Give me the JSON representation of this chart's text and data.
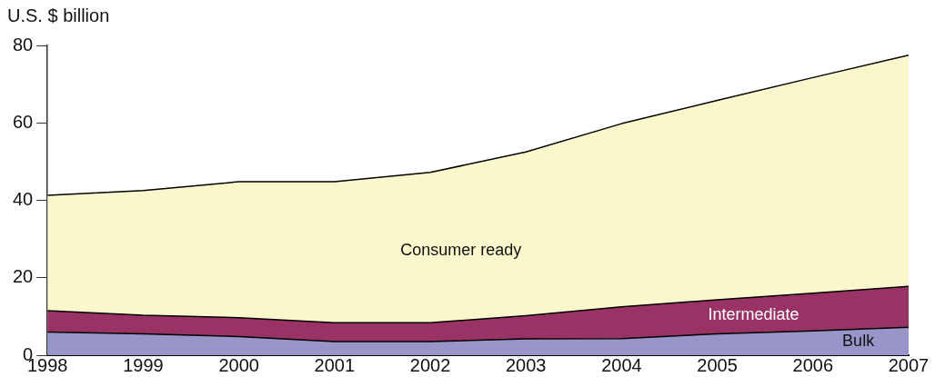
{
  "chart_data": {
    "type": "area",
    "ylabel": "U.S. $ billion",
    "stacked": true,
    "x": [
      1998,
      1999,
      2000,
      2001,
      2002,
      2003,
      2004,
      2005,
      2006,
      2007
    ],
    "xlim": [
      1998,
      2007
    ],
    "xticks": [
      1998,
      1999,
      2000,
      2001,
      2002,
      2003,
      2004,
      2005,
      2006,
      2007
    ],
    "ylim": [
      0,
      80
    ],
    "yticks": [
      0,
      20,
      40,
      60,
      80
    ],
    "grid": false,
    "legend": false,
    "series": [
      {
        "name": "Bulk",
        "color": "#9896c8",
        "values": [
          6.0,
          5.5,
          4.8,
          3.5,
          3.5,
          4.2,
          4.3,
          5.5,
          6.3,
          7.2
        ]
      },
      {
        "name": "Intermediate",
        "color": "#993366",
        "values": [
          5.5,
          4.8,
          4.9,
          4.9,
          4.9,
          6.0,
          8.2,
          8.8,
          9.7,
          10.6
        ]
      },
      {
        "name": "Consumer ready",
        "color": "#faf7cc",
        "values": [
          29.8,
          32.2,
          35.1,
          36.4,
          38.8,
          42.3,
          47.3,
          51.5,
          55.7,
          59.7
        ]
      }
    ]
  }
}
